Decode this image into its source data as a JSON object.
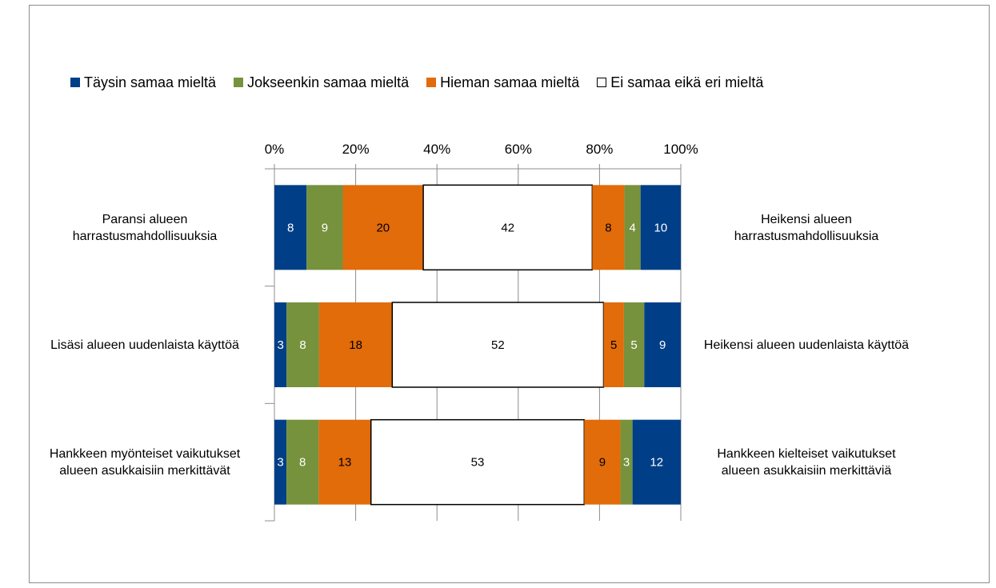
{
  "chart_data": {
    "type": "bar",
    "orientation": "horizontal",
    "stacked": "percent",
    "xlim": [
      0,
      100
    ],
    "x_ticks": [
      "0%",
      "20%",
      "40%",
      "60%",
      "80%",
      "100%"
    ],
    "grid": true,
    "legend_position": "top",
    "categories_left": [
      [
        "Paransi alueen",
        "harrastusmahdollisuuksia"
      ],
      [
        "Lisäsi alueen uudenlaista käyttöä"
      ],
      [
        "Hankkeen myönteiset vaikutukset",
        "alueen asukkaisiin merkittävät"
      ]
    ],
    "categories_right": [
      [
        "Heikensi alueen",
        "harrastusmahdollisuuksia"
      ],
      [
        "Heikensi alueen uudenlaista käyttöä"
      ],
      [
        "Hankkeen kielteiset vaikutukset",
        "alueen asukkaisiin merkittäviä"
      ]
    ],
    "legend": [
      {
        "label": "Täysin samaa mieltä",
        "color": "#003f87"
      },
      {
        "label": "Jokseenkin samaa mieltä",
        "color": "#76923c"
      },
      {
        "label": "Hieman samaa mieltä",
        "color": "#e26b0a"
      },
      {
        "label": "Ei samaa eikä eri mieltä",
        "color": "#ffffff"
      }
    ],
    "segment_order": [
      "Täysin samaa mieltä",
      "Jokseenkin samaa mieltä",
      "Hieman samaa mieltä",
      "Ei samaa eikä eri mieltä",
      "Hieman samaa mieltä",
      "Jokseenkin samaa mieltä",
      "Täysin samaa mieltä"
    ],
    "segment_colors": [
      "#003f87",
      "#76923c",
      "#e26b0a",
      "#ffffff",
      "#e26b0a",
      "#76923c",
      "#003f87"
    ],
    "segment_text_colors": [
      "#ffffff",
      "#ffffff",
      "#000000",
      "#000000",
      "#000000",
      "#ffffff",
      "#ffffff"
    ],
    "rows": [
      [
        8,
        9,
        20,
        42,
        8,
        4,
        10
      ],
      [
        3,
        8,
        18,
        52,
        5,
        5,
        9
      ],
      [
        3,
        8,
        13,
        53,
        9,
        3,
        12
      ]
    ]
  }
}
